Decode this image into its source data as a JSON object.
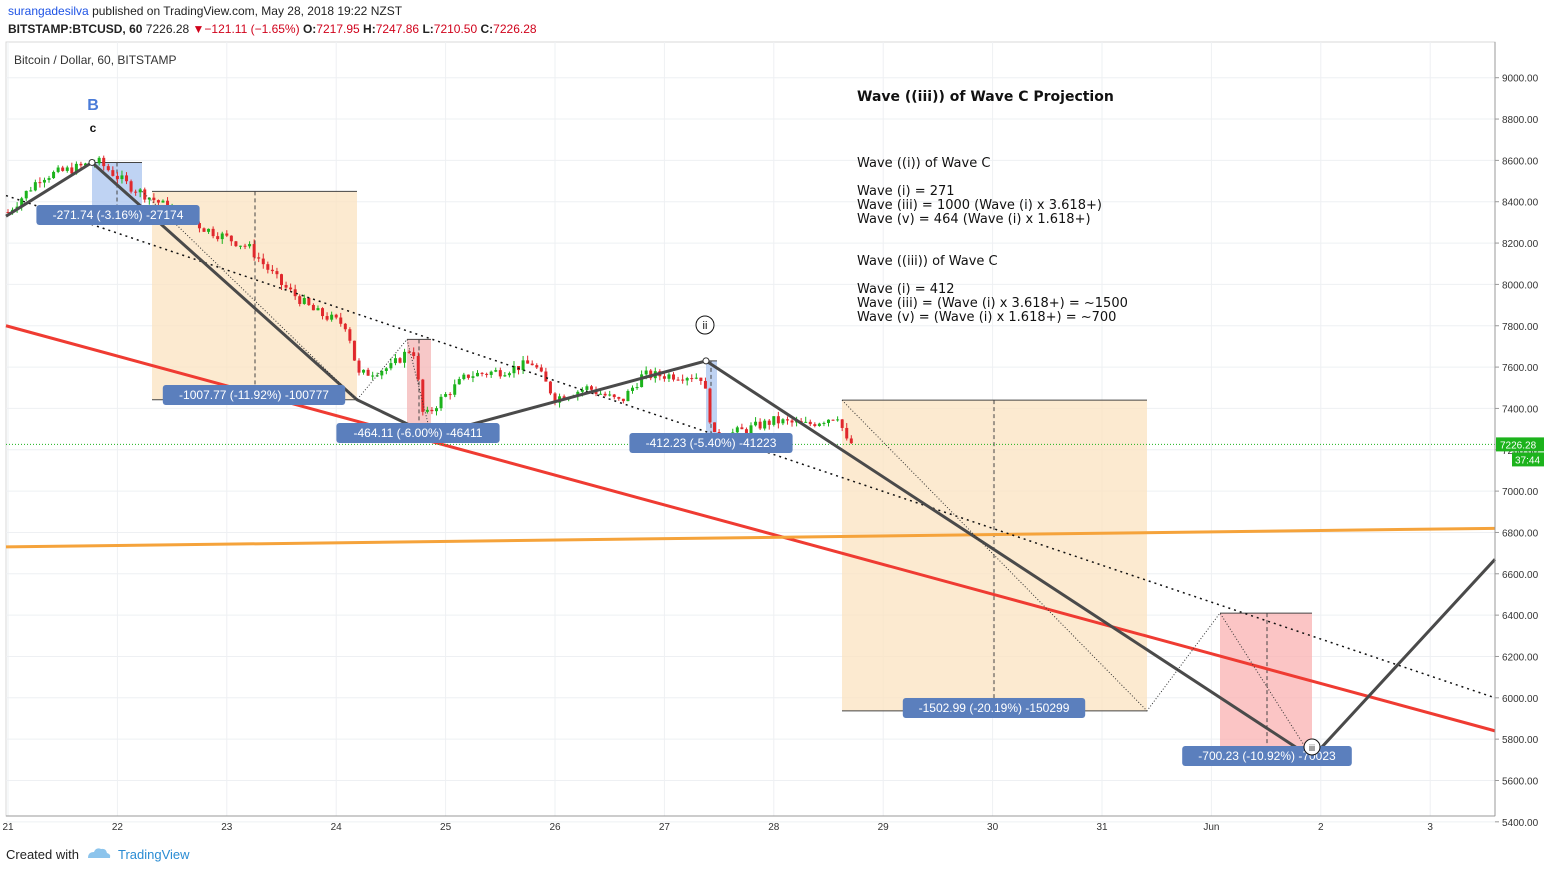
{
  "header": {
    "username": "surangadesilva",
    "published_text": "published on TradingView.com, May 28, 2018 19:22 NZST",
    "symbol": "BITSTAMP:BTCUSD, 60",
    "last": "7226.28",
    "change_arrow": "▼",
    "change": "−121.11 (−1.65%)",
    "o_label": "O:",
    "o_value": "7217.95",
    "h_label": "H:",
    "h_value": "7247.86",
    "l_label": "L:",
    "l_value": "7210.50",
    "c_label": "C:",
    "c_value": "7226.28"
  },
  "chart_data": {
    "type": "candlestick",
    "title": "Bitcoin / Dollar, 60, BITSTAMP",
    "annotation_title": "Wave ((iii)) of Wave C Projection",
    "notes": [
      "Wave ((i)) of Wave C",
      "Wave (i) = 271",
      "Wave (iii) = 1000 (Wave (i) x 3.618+)",
      "Wave (v) = 464 (Wave (i) x 1.618+)",
      "Wave ((iii)) of Wave C",
      "Wave (i) = 412",
      "Wave (iii) = (Wave (i) x 3.618+) = ~1500",
      "Wave (v) = (Wave (i) x 1.618+) = ~700"
    ],
    "ylim": [
      5300,
      9100
    ],
    "y_ticks": [
      "9000.00",
      "8800.00",
      "8600.00",
      "8400.00",
      "8200.00",
      "8000.00",
      "7800.00",
      "7600.00",
      "7400.00",
      "7200.00",
      "7000.00",
      "6800.00",
      "6600.00",
      "6400.00",
      "6200.00",
      "6000.00",
      "5800.00",
      "5600.00",
      "5400.00"
    ],
    "x_ticks": [
      "21",
      "22",
      "23",
      "24",
      "25",
      "26",
      "27",
      "28",
      "29",
      "30",
      "31",
      "Jun",
      "2",
      "3"
    ],
    "last_price": "7226.28",
    "countdown": "37:44",
    "wave_labels": {
      "B": "B",
      "c": "c",
      "ii": "ii",
      "iii": "iii"
    },
    "measures": [
      {
        "label": "-271.74 (-3.16%) -27174",
        "top": 8590,
        "bottom": 8318
      },
      {
        "label": "-1007.77 (-11.92%) -100777",
        "top": 8450,
        "bottom": 7442
      },
      {
        "label": "-464.11 (-6.00%) -46411",
        "top": 7734,
        "bottom": 7270
      },
      {
        "label": "-412.23 (-5.40%) -41223",
        "top": 7630,
        "bottom": 7218
      },
      {
        "label": "-1502.99 (-20.19%) -150299",
        "top": 7440,
        "bottom": 5937
      },
      {
        "label": "-700.23 (-10.92%) -70023",
        "top": 6410,
        "bottom": 5710
      }
    ],
    "candles_hint": "hourly OHLC from May 21 to May 28 2018, falling from ~8600 to ~7226",
    "colors": {
      "up": "#1cb31c",
      "down": "#e0282c",
      "trend_red": "#ef3b32",
      "trend_orange": "#f5a33b",
      "wave": "#4a4a4a"
    }
  },
  "footer": {
    "created_with": "Created with",
    "brand": "TradingView"
  }
}
